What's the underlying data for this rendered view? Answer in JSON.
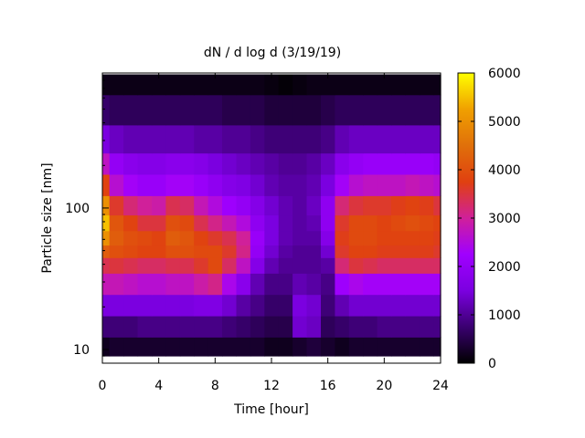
{
  "chart_data": {
    "type": "heatmap",
    "title": "dN / d log d (3/19/19)",
    "xlabel": "Time [hour]",
    "ylabel": "Particle size [nm]",
    "xlim": [
      0,
      24
    ],
    "ylim": [
      8,
      900
    ],
    "yscale": "log",
    "x_ticks": [
      0,
      4,
      8,
      12,
      16,
      20,
      24
    ],
    "y_ticks": [
      10,
      100
    ],
    "colorbar": {
      "range": [
        0,
        6000
      ],
      "ticks": [
        0,
        1000,
        2000,
        3000,
        4000,
        5000,
        6000
      ],
      "palette": [
        "#000000",
        "#3a0070",
        "#7b00e0",
        "#a000ff",
        "#d0209a",
        "#e04010",
        "#e0700a",
        "#f0a000",
        "#ffff00"
      ]
    },
    "x": [
      0,
      1,
      2,
      3,
      4,
      5,
      6,
      7,
      8,
      9,
      10,
      11,
      12,
      13,
      14,
      15,
      16,
      17,
      18,
      19,
      20,
      21,
      22,
      23,
      24
    ],
    "y": [
      10,
      15,
      20,
      30,
      40,
      50,
      60,
      80,
      100,
      150,
      200,
      300,
      500,
      800
    ],
    "z": [
      [
        200,
        300,
        300,
        300,
        300,
        300,
        300,
        300,
        300,
        300,
        300,
        300,
        200,
        200,
        300,
        400,
        300,
        200,
        300,
        300,
        300,
        300,
        300,
        300,
        300
      ],
      [
        800,
        800,
        800,
        900,
        900,
        900,
        900,
        900,
        900,
        800,
        700,
        600,
        500,
        500,
        1400,
        1300,
        600,
        700,
        800,
        800,
        900,
        900,
        900,
        900,
        900
      ],
      [
        1500,
        1500,
        1500,
        1500,
        1500,
        1500,
        1500,
        1600,
        1600,
        1400,
        1100,
        900,
        700,
        700,
        1500,
        1400,
        800,
        1200,
        1400,
        1400,
        1400,
        1400,
        1400,
        1400,
        1400
      ],
      [
        2800,
        2800,
        2700,
        2600,
        2600,
        2700,
        2700,
        2900,
        3100,
        2400,
        1800,
        1200,
        900,
        900,
        1200,
        1100,
        900,
        2200,
        2400,
        2300,
        2300,
        2300,
        2300,
        2300,
        2300
      ],
      [
        3400,
        3500,
        3400,
        3300,
        3300,
        3400,
        3400,
        3600,
        3900,
        3300,
        2700,
        1700,
        1200,
        1000,
        1000,
        1000,
        1100,
        3200,
        3500,
        3400,
        3300,
        3300,
        3300,
        3300,
        3300
      ],
      [
        4200,
        4000,
        3900,
        3800,
        3800,
        4000,
        4000,
        3900,
        3900,
        3600,
        3100,
        2000,
        1400,
        1100,
        1000,
        1000,
        1400,
        3600,
        3800,
        3800,
        3700,
        3700,
        3700,
        3700,
        3600
      ],
      [
        5000,
        4200,
        4000,
        3900,
        3800,
        4200,
        4100,
        3800,
        3600,
        3400,
        3000,
        2100,
        1500,
        1200,
        1100,
        1100,
        1700,
        3700,
        3900,
        3900,
        3800,
        3800,
        3800,
        3800,
        3700
      ],
      [
        5500,
        4100,
        3800,
        3500,
        3500,
        4000,
        3900,
        3400,
        3100,
        2800,
        2500,
        1900,
        1500,
        1200,
        1100,
        1200,
        1900,
        3600,
        3900,
        3900,
        3800,
        3900,
        4000,
        3900,
        3800
      ],
      [
        5000,
        3600,
        3200,
        3000,
        2900,
        3400,
        3300,
        2800,
        2500,
        2200,
        2000,
        1700,
        1400,
        1200,
        1100,
        1300,
        1900,
        3200,
        3500,
        3600,
        3600,
        3700,
        3800,
        3700,
        3500
      ],
      [
        3800,
        2600,
        2300,
        2100,
        2100,
        2300,
        2300,
        2100,
        1900,
        1700,
        1600,
        1400,
        1200,
        1100,
        1100,
        1200,
        1500,
        2300,
        2600,
        2700,
        2700,
        2700,
        2800,
        2700,
        2600
      ],
      [
        2700,
        2000,
        1800,
        1700,
        1700,
        1800,
        1800,
        1700,
        1500,
        1400,
        1300,
        1200,
        1100,
        1000,
        1000,
        1100,
        1300,
        1800,
        2000,
        2100,
        2100,
        2100,
        2100,
        2100,
        2000
      ],
      [
        1500,
        1300,
        1200,
        1200,
        1200,
        1200,
        1200,
        1100,
        1100,
        1000,
        1000,
        900,
        800,
        800,
        800,
        800,
        900,
        1200,
        1300,
        1300,
        1300,
        1300,
        1300,
        1300,
        1300
      ],
      [
        700,
        600,
        600,
        600,
        600,
        600,
        600,
        600,
        600,
        500,
        500,
        500,
        400,
        400,
        400,
        400,
        500,
        600,
        600,
        600,
        600,
        600,
        600,
        600,
        600
      ],
      [
        150,
        150,
        150,
        150,
        150,
        150,
        150,
        150,
        150,
        150,
        150,
        150,
        100,
        50,
        100,
        150,
        150,
        150,
        150,
        150,
        150,
        150,
        150,
        150,
        150
      ]
    ]
  }
}
